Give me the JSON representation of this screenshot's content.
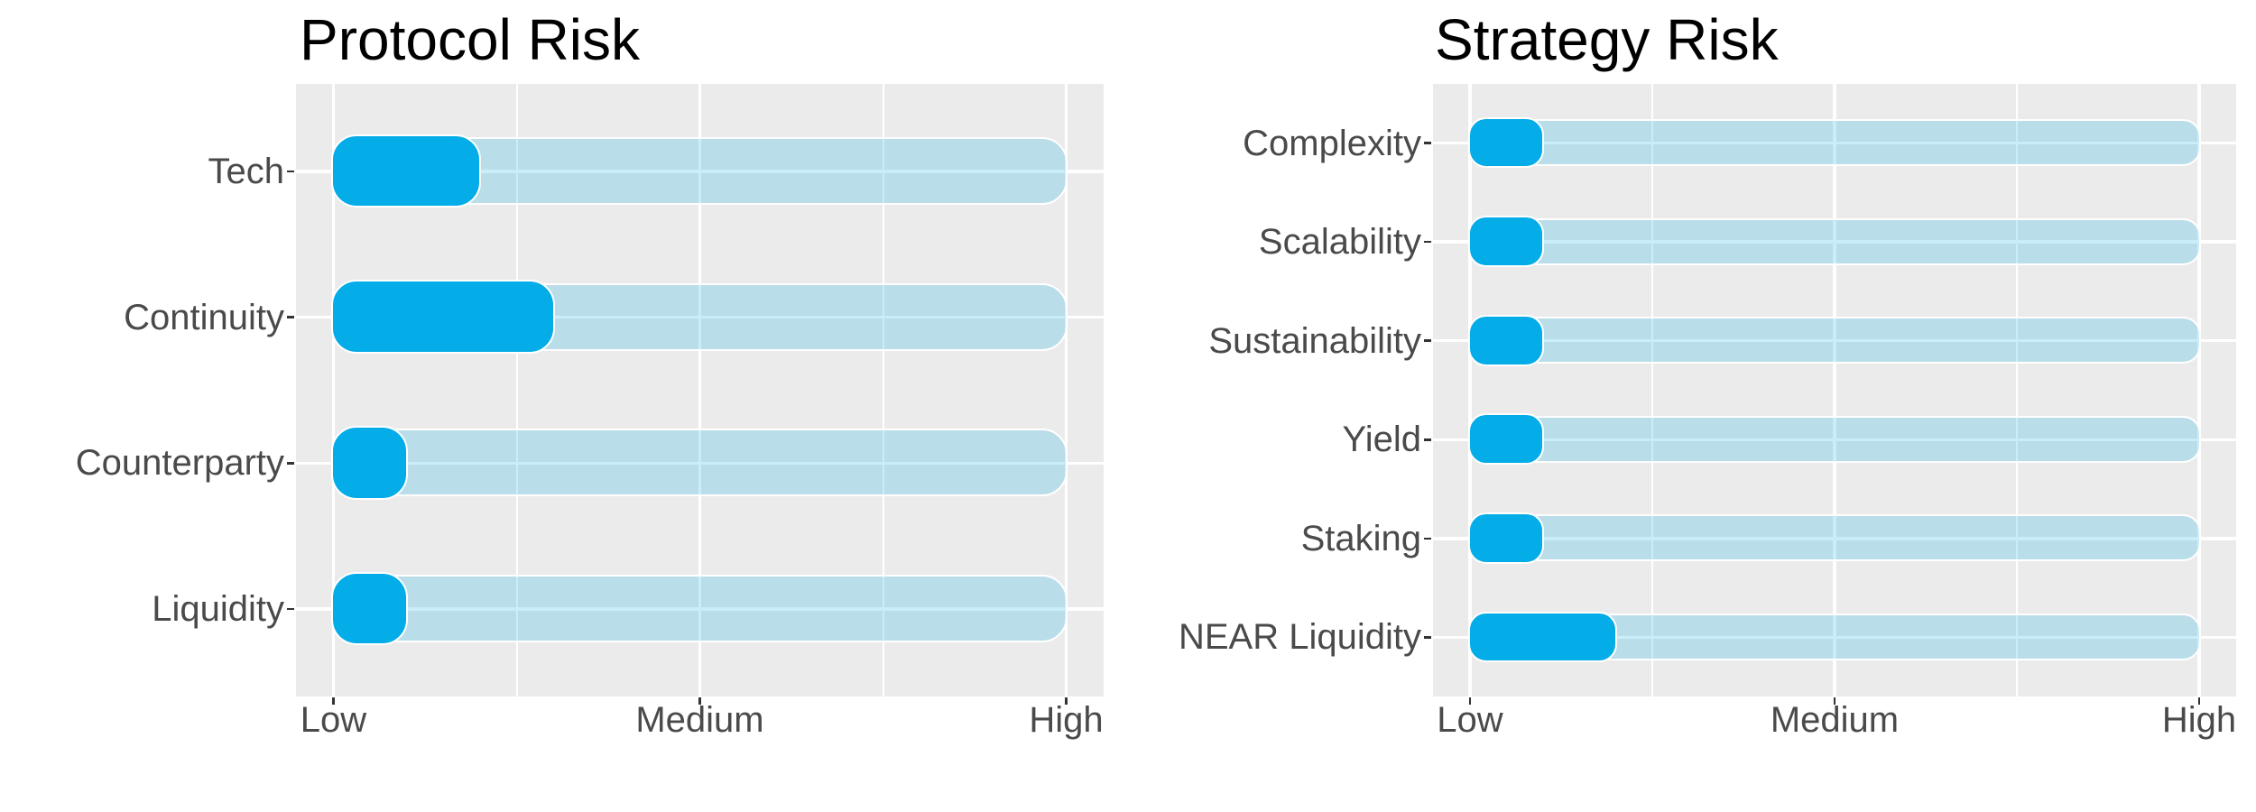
{
  "page": {
    "background": "#FFFFFF"
  },
  "chart_data": [
    {
      "type": "bar",
      "orientation": "horizontal",
      "title": "Protocol Risk",
      "categories": [
        "Tech",
        "Continuity",
        "Counterparty",
        "Liquidity"
      ],
      "values": [
        1.4,
        1.6,
        1.2,
        1.2
      ],
      "track_value": 3,
      "xlim": [
        1,
        3
      ],
      "x_ticks": [
        {
          "label": "Low",
          "value": 1
        },
        {
          "label": "Medium",
          "value": 2
        },
        {
          "label": "High",
          "value": 3
        }
      ],
      "xlabel": "",
      "ylabel": "",
      "legend": "none",
      "grid": "white major verticals at Low/Medium/High, white minor verticals at midpoints, white horizontal line at each category row, gray panel",
      "colors": {
        "bar": "#04ACE8",
        "track": "#04ACE8",
        "track_alpha": 0.21,
        "panel": "#EBEBEB",
        "grid": "#FFFFFF",
        "tick_mark": "#333333",
        "axis_text": "#4A4A4A",
        "title": "#000000"
      }
    },
    {
      "type": "bar",
      "orientation": "horizontal",
      "title": "Strategy Risk",
      "categories": [
        "Complexity",
        "Scalability",
        "Sustainability",
        "Yield",
        "Staking",
        "NEAR Liquidity"
      ],
      "values": [
        1.2,
        1.2,
        1.2,
        1.2,
        1.2,
        1.4
      ],
      "track_value": 3,
      "xlim": [
        1,
        3
      ],
      "x_ticks": [
        {
          "label": "Low",
          "value": 1
        },
        {
          "label": "Medium",
          "value": 2
        },
        {
          "label": "High",
          "value": 3
        }
      ],
      "xlabel": "",
      "ylabel": "",
      "legend": "none",
      "grid": "white major verticals at Low/Medium/High, white minor verticals at midpoints, white horizontal line at each category row, gray panel",
      "colors": {
        "bar": "#04ACE8",
        "track": "#04ACE8",
        "track_alpha": 0.21,
        "panel": "#EBEBEB",
        "grid": "#FFFFFF",
        "tick_mark": "#333333",
        "axis_text": "#4A4A4A",
        "title": "#000000"
      }
    }
  ]
}
